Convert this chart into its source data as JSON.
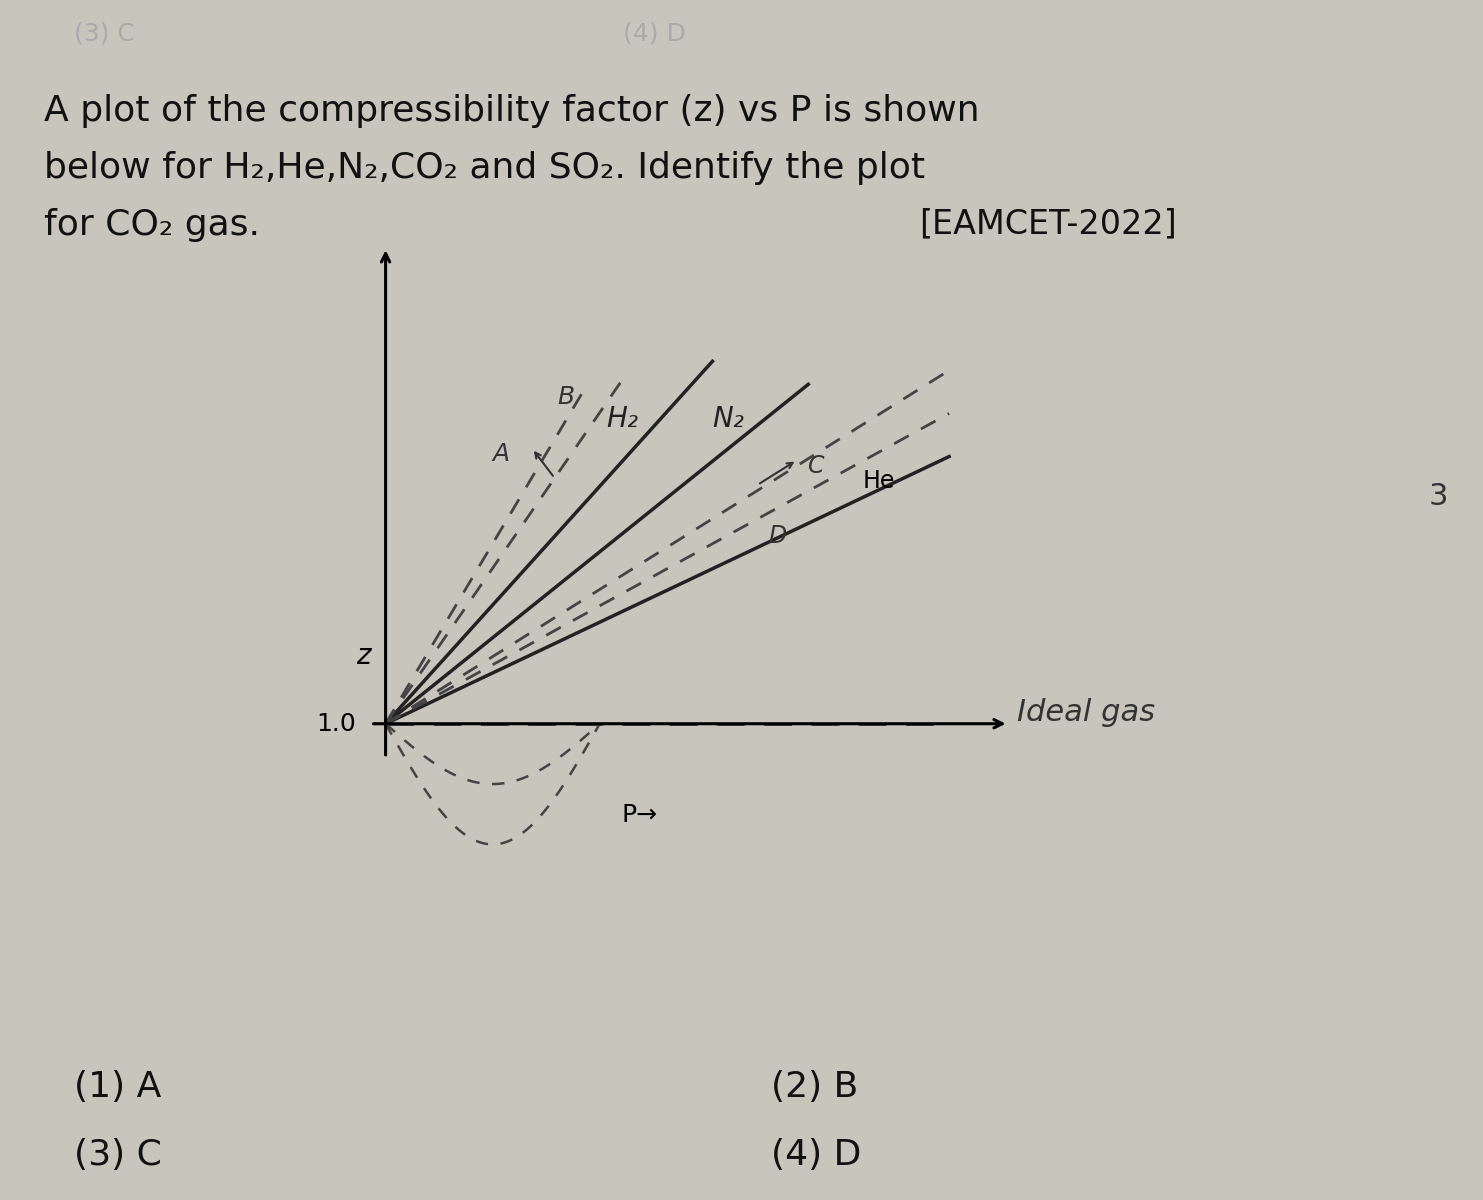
{
  "bg_top": "#2e2e2e",
  "bg_main": "#c8c5bc",
  "title_line1": "A plot of the compressibility factor (z) vs P is shown",
  "title_line2": "below for H₂,He,N₂,CO₂ and SO₂. Identify the plot",
  "title_line3": "for CO₂ gas.",
  "exam_tag": "[EAMCET-2022]",
  "header_left": "(3) C",
  "header_right": "(4) D",
  "options_line1": "(1) A",
  "options_line2": "(2) B",
  "options_line3": "(3) C",
  "options_line4": "(4) D",
  "ideal_gas_label": "Ideal gas",
  "z_label": "z",
  "p_label": "P→",
  "number_right": "3",
  "ox": 0.26,
  "oy": 0.42,
  "gw": 0.38,
  "gh": 0.38
}
